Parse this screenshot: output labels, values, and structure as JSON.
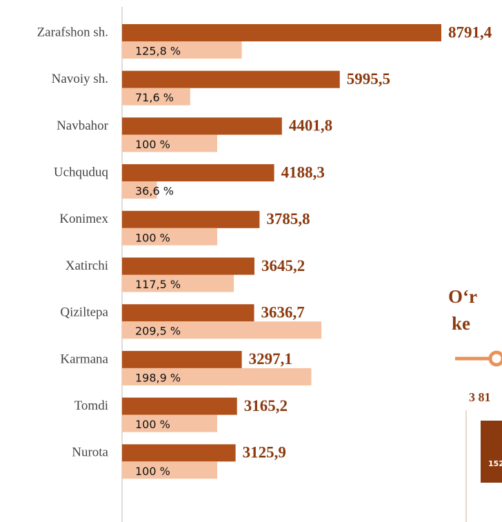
{
  "chart_data": {
    "type": "bar",
    "categories": [
      "Zarafshon sh.",
      "Navoiy sh.",
      "Navbahor",
      "Uchquduq",
      "Konimex",
      "Xatirchi",
      "Qiziltepa",
      "Karmana",
      "Tomdi",
      "Nurota"
    ],
    "series": [
      {
        "color": "#B0501A",
        "values": [
          8791.4,
          5995.5,
          4401.8,
          4188.3,
          3785.8,
          3645.2,
          3636.7,
          3297.1,
          3165.2,
          3125.9
        ],
        "value_labels": [
          "8791,4",
          "5995,5",
          "4401,8",
          "4188,3",
          "3785,8",
          "3645,2",
          "3636,7",
          "3297,1",
          "3165,2",
          "3125,9"
        ]
      },
      {
        "color": "#F5C3A3",
        "values": [
          125.8,
          71.6,
          100,
          36.6,
          100,
          117.5,
          209.5,
          198.9,
          100,
          100
        ],
        "value_labels": [
          "125,8 %",
          "71,6 %",
          "100 %",
          "36,6 %",
          "100 %",
          "117,5 %",
          "209,5 %",
          "198,9 %",
          "100 %",
          "100 %"
        ]
      }
    ],
    "annotations": [
      "O‘r",
      "ke",
      "3 81",
      "152"
    ]
  }
}
